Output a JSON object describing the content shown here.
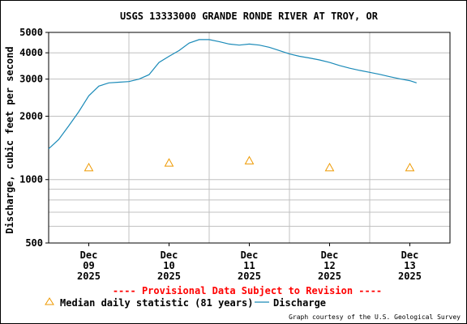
{
  "colors": {
    "background": "#ffffff",
    "grid": "#c0c0c0",
    "axis": "#000000",
    "discharge": "#1a8ab8",
    "median": "#ee9900",
    "provisional": "#ff0000",
    "text": "#000000"
  },
  "chart_data": {
    "type": "line",
    "title": "USGS 13333000 GRANDE RONDE RIVER AT TROY, OR",
    "ylabel": "Discharge, cubic feet per second",
    "xlabel": "",
    "yscale": "log",
    "ylim": [
      500,
      5000
    ],
    "xlim": [
      "2025-12-08 12:00",
      "2025-12-13 12:00"
    ],
    "y_tick_labels": [
      "500",
      "1000",
      "2000",
      "3000",
      "4000",
      "5000"
    ],
    "y_minor_ticks": [
      600,
      700,
      800,
      900
    ],
    "x_ticks": [
      {
        "month": "Dec",
        "day": "09",
        "year": "2025",
        "x": "2025-12-09"
      },
      {
        "month": "Dec",
        "day": "10",
        "year": "2025",
        "x": "2025-12-10"
      },
      {
        "month": "Dec",
        "day": "11",
        "year": "2025",
        "x": "2025-12-11"
      },
      {
        "month": "Dec",
        "day": "12",
        "year": "2025",
        "x": "2025-12-12"
      },
      {
        "month": "Dec",
        "day": "13",
        "year": "2025",
        "x": "2025-12-13"
      }
    ],
    "x_gridlines": [
      "2025-12-09 12:00",
      "2025-12-10 12:00",
      "2025-12-11 12:00",
      "2025-12-12 12:00"
    ],
    "grid": true,
    "series": [
      {
        "name": "Discharge",
        "type": "line",
        "points": [
          {
            "x": "2025-12-08 12:00",
            "y": 1400
          },
          {
            "x": "2025-12-08 15:00",
            "y": 1550
          },
          {
            "x": "2025-12-08 18:00",
            "y": 1800
          },
          {
            "x": "2025-12-08 21:00",
            "y": 2100
          },
          {
            "x": "2025-12-09 00:00",
            "y": 2500
          },
          {
            "x": "2025-12-09 03:00",
            "y": 2780
          },
          {
            "x": "2025-12-09 06:00",
            "y": 2880
          },
          {
            "x": "2025-12-09 09:00",
            "y": 2900
          },
          {
            "x": "2025-12-09 12:00",
            "y": 2920
          },
          {
            "x": "2025-12-09 15:00",
            "y": 3000
          },
          {
            "x": "2025-12-09 18:00",
            "y": 3150
          },
          {
            "x": "2025-12-09 21:00",
            "y": 3600
          },
          {
            "x": "2025-12-10 00:00",
            "y": 3850
          },
          {
            "x": "2025-12-10 03:00",
            "y": 4100
          },
          {
            "x": "2025-12-10 06:00",
            "y": 4450
          },
          {
            "x": "2025-12-10 09:00",
            "y": 4620
          },
          {
            "x": "2025-12-10 12:00",
            "y": 4620
          },
          {
            "x": "2025-12-10 15:00",
            "y": 4520
          },
          {
            "x": "2025-12-10 18:00",
            "y": 4400
          },
          {
            "x": "2025-12-10 21:00",
            "y": 4350
          },
          {
            "x": "2025-12-11 00:00",
            "y": 4400
          },
          {
            "x": "2025-12-11 03:00",
            "y": 4350
          },
          {
            "x": "2025-12-11 06:00",
            "y": 4250
          },
          {
            "x": "2025-12-11 09:00",
            "y": 4100
          },
          {
            "x": "2025-12-11 12:00",
            "y": 3950
          },
          {
            "x": "2025-12-11 15:00",
            "y": 3850
          },
          {
            "x": "2025-12-11 18:00",
            "y": 3780
          },
          {
            "x": "2025-12-11 21:00",
            "y": 3700
          },
          {
            "x": "2025-12-12 00:00",
            "y": 3600
          },
          {
            "x": "2025-12-12 03:00",
            "y": 3480
          },
          {
            "x": "2025-12-12 06:00",
            "y": 3380
          },
          {
            "x": "2025-12-12 09:00",
            "y": 3300
          },
          {
            "x": "2025-12-12 12:00",
            "y": 3230
          },
          {
            "x": "2025-12-12 15:00",
            "y": 3160
          },
          {
            "x": "2025-12-12 18:00",
            "y": 3080
          },
          {
            "x": "2025-12-12 21:00",
            "y": 3010
          },
          {
            "x": "2025-12-13 00:00",
            "y": 2950
          },
          {
            "x": "2025-12-13 02:00",
            "y": 2880
          }
        ]
      },
      {
        "name": "Median daily statistic (81 years)",
        "type": "scatter",
        "marker": "triangle",
        "points": [
          {
            "x": "2025-12-09",
            "y": 1140
          },
          {
            "x": "2025-12-10",
            "y": 1200
          },
          {
            "x": "2025-12-11",
            "y": 1230
          },
          {
            "x": "2025-12-12",
            "y": 1140
          },
          {
            "x": "2025-12-13",
            "y": 1140
          }
        ]
      }
    ],
    "legend": {
      "placement": "bottom",
      "median_label": "Median daily statistic (81 years)",
      "discharge_label": "Discharge"
    },
    "annotations": {
      "provisional": "---- Provisional Data Subject to Revision ----",
      "credit": "Graph courtesy of the U.S. Geological Survey"
    }
  }
}
